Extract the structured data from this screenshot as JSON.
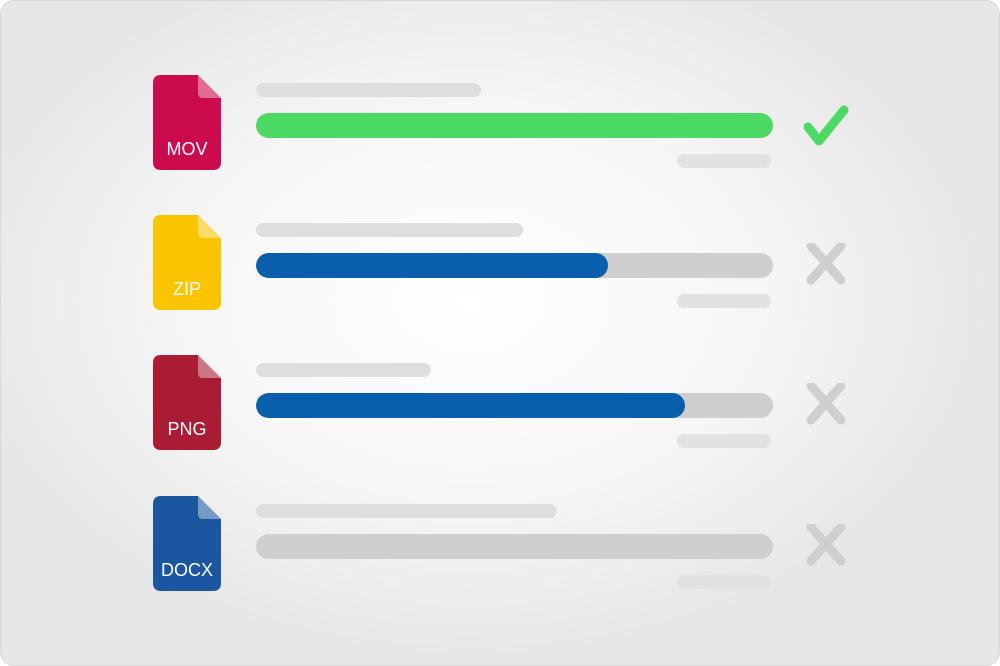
{
  "uploads": [
    {
      "extension": "MOV",
      "file_color": "#cc0b4f",
      "progress_percent": 100,
      "bar_color": "#4cd964",
      "status": "check-icon",
      "status_color": "#4cd964"
    },
    {
      "extension": "ZIP",
      "file_color": "#fbc400",
      "progress_percent": 68,
      "bar_color": "#0a5fad",
      "status": "x-icon",
      "status_color": "#cfcfcf"
    },
    {
      "extension": "PNG",
      "file_color": "#a91c33",
      "progress_percent": 83,
      "bar_color": "#0a5fad",
      "status": "x-icon",
      "status_color": "#cfcfcf"
    },
    {
      "extension": "DOCX",
      "file_color": "#1b56a0",
      "progress_percent": 0,
      "bar_color": "#0a5fad",
      "status": "x-icon",
      "status_color": "#cfcfcf"
    }
  ]
}
